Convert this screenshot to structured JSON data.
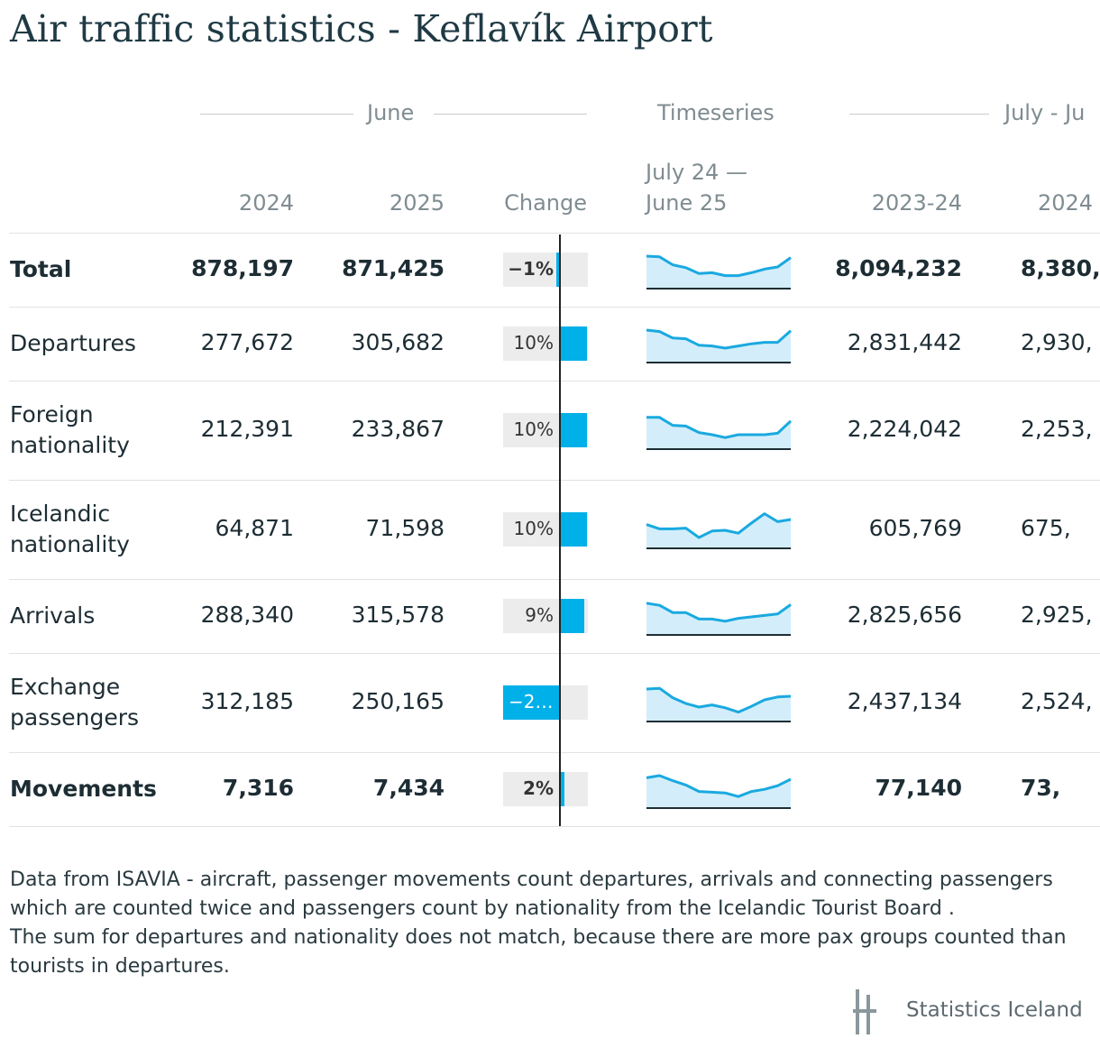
{
  "title": "Air traffic statistics - Keflavík Airport",
  "groups": {
    "june": "June",
    "timeseries": "Timeseries",
    "annual": "July - Ju"
  },
  "columns": {
    "june_2024": "2024",
    "june_2025": "2025",
    "change": "Change",
    "timeseries_line1": "July 24 —",
    "timeseries_line2": "June 25",
    "annual_2023_24": "2023-24",
    "annual_2024_25": "2024"
  },
  "chart_data": {
    "type": "table",
    "rows": [
      {
        "label": "Total",
        "bold": true,
        "june_2024": "878,197",
        "june_2025": "871,425",
        "change_pct": -1,
        "change_label": "−1%",
        "annual_2023_24": "8,094,232",
        "annual_2024_25": "8,380,",
        "spark": [
          0.9,
          0.88,
          0.66,
          0.58,
          0.42,
          0.44,
          0.36,
          0.36,
          0.44,
          0.54,
          0.6,
          0.86
        ]
      },
      {
        "label": "Departures",
        "bold": false,
        "june_2024": "277,672",
        "june_2025": "305,682",
        "change_pct": 10,
        "change_label": "10%",
        "annual_2023_24": "2,831,442",
        "annual_2024_25": "2,930,",
        "spark": [
          0.9,
          0.86,
          0.68,
          0.66,
          0.48,
          0.46,
          0.4,
          0.46,
          0.52,
          0.56,
          0.56,
          0.88
        ]
      },
      {
        "label": "Foreign\nnationality",
        "bold": false,
        "june_2024": "212,391",
        "june_2025": "233,867",
        "change_pct": 10,
        "change_label": "10%",
        "annual_2023_24": "2,224,042",
        "annual_2024_25": "2,253,",
        "spark": [
          0.88,
          0.88,
          0.66,
          0.64,
          0.46,
          0.4,
          0.32,
          0.4,
          0.4,
          0.4,
          0.44,
          0.78
        ]
      },
      {
        "label": "Icelandic\nnationality",
        "bold": false,
        "june_2024": "64,871",
        "june_2025": "71,598",
        "change_pct": 10,
        "change_label": "10%",
        "annual_2023_24": "605,769",
        "annual_2024_25": "675,",
        "spark": [
          0.66,
          0.54,
          0.54,
          0.56,
          0.3,
          0.48,
          0.5,
          0.42,
          0.7,
          0.96,
          0.74,
          0.8
        ]
      },
      {
        "label": "Arrivals",
        "bold": false,
        "june_2024": "288,340",
        "june_2025": "315,578",
        "change_pct": 9,
        "change_label": "9%",
        "annual_2023_24": "2,825,656",
        "annual_2024_25": "2,925,",
        "spark": [
          0.88,
          0.82,
          0.62,
          0.62,
          0.44,
          0.44,
          0.38,
          0.46,
          0.5,
          0.54,
          0.58,
          0.84
        ]
      },
      {
        "label": "Exchange\npassengers",
        "bold": false,
        "june_2024": "312,185",
        "june_2025": "250,165",
        "change_pct": -20,
        "change_label": "−2…",
        "annual_2023_24": "2,437,134",
        "annual_2024_25": "2,524,",
        "spark": [
          0.9,
          0.92,
          0.66,
          0.5,
          0.4,
          0.46,
          0.38,
          0.26,
          0.42,
          0.6,
          0.68,
          0.7
        ]
      },
      {
        "label": "Movements",
        "bold": true,
        "june_2024": "7,316",
        "june_2025": "7,434",
        "change_pct": 2,
        "change_label": "2%",
        "annual_2023_24": "77,140",
        "annual_2024_25": "73,",
        "spark": [
          0.84,
          0.9,
          0.76,
          0.64,
          0.46,
          0.44,
          0.42,
          0.32,
          0.46,
          0.52,
          0.62,
          0.8
        ]
      }
    ]
  },
  "note": "Data from ISAVIA - aircraft, passenger movements count departures, arrivals and connecting passengers which are counted twice and passengers count by nationality from the Icelandic Tourist Board .\nThe sum for departures and nationality does not match, because there are more pax groups counted than tourists in departures.",
  "logo_text": "Statistics Iceland",
  "colors": {
    "bar": "#00b0e8",
    "spark_line": "#1aa9e0",
    "spark_fill": "#d3eefa"
  }
}
